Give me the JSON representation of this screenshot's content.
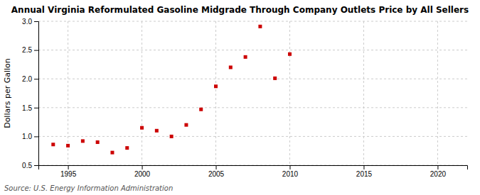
{
  "chart_data": {
    "type": "scatter",
    "title": "Annual Virginia Reformulated Gasoline Midgrade Through Company Outlets Price by All Sellers",
    "y_label": "Dollars per Gallon",
    "annotations": [
      "Source: U.S. Energy Information Administration"
    ],
    "x": [
      1994,
      1995,
      1996,
      1997,
      1998,
      1999,
      2000,
      2001,
      2002,
      2003,
      2004,
      2005,
      2006,
      2007,
      2008,
      2009,
      2010
    ],
    "values": [
      0.86,
      0.84,
      0.92,
      0.9,
      0.72,
      0.8,
      1.15,
      1.1,
      1.0,
      1.2,
      1.47,
      1.87,
      2.2,
      2.38,
      2.91,
      2.01,
      2.43
    ],
    "color": "#cc0000",
    "marker": "square",
    "xlim": [
      1993,
      2022
    ],
    "ylim": [
      0.5,
      3.0
    ],
    "xticks": [
      1995,
      2000,
      2005,
      2010,
      2015,
      2020
    ],
    "yticks": [
      0.5,
      {
        "value": 1.0,
        "label": "1.0"
      },
      1.5,
      {
        "value": 2.0,
        "label": "2.0"
      },
      2.5,
      {
        "value": 3.0,
        "label": "3.0"
      }
    ],
    "grid": true
  }
}
